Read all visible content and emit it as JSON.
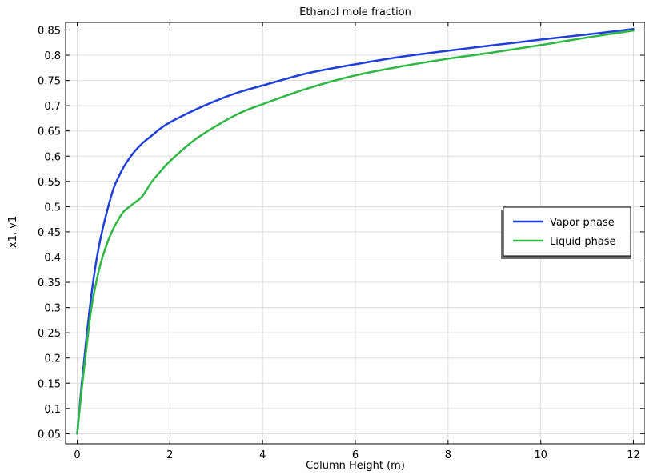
{
  "chart_data": {
    "type": "line",
    "title": "Ethanol mole fraction",
    "xlabel": "Column Height (m)",
    "ylabel": "x1, y1",
    "xlim": [
      -0.25,
      12.25
    ],
    "ylim": [
      0.03,
      0.865
    ],
    "xticks": [
      0,
      2,
      4,
      6,
      8,
      10,
      12
    ],
    "yticks": [
      0.05,
      0.1,
      0.15,
      0.2,
      0.25,
      0.3,
      0.35,
      0.4,
      0.45,
      0.5,
      0.55,
      0.6,
      0.65,
      0.7,
      0.75,
      0.8,
      0.85
    ],
    "ytick_labels": [
      "0.05",
      "0.1",
      "0.15",
      "0.2",
      "0.25",
      "0.3",
      "0.35",
      "0.4",
      "0.45",
      "0.5",
      "0.55",
      "0.6",
      "0.65",
      "0.7",
      "0.75",
      "0.8",
      "0.85"
    ],
    "grid": true,
    "legend_position": "right",
    "series": [
      {
        "name": "Vapor phase",
        "color": "#1f3fdc",
        "x": [
          0,
          0.1,
          0.2,
          0.3,
          0.4,
          0.5,
          0.6,
          0.7,
          0.8,
          0.9,
          1.0,
          1.2,
          1.4,
          1.6,
          1.8,
          2.0,
          2.5,
          3.0,
          3.5,
          4.0,
          5.0,
          6.0,
          7.0,
          8.0,
          9.0,
          10.0,
          11.0,
          12.0
        ],
        "y": [
          0.05,
          0.15,
          0.24,
          0.32,
          0.385,
          0.435,
          0.475,
          0.51,
          0.54,
          0.56,
          0.578,
          0.605,
          0.625,
          0.64,
          0.655,
          0.667,
          0.69,
          0.71,
          0.727,
          0.74,
          0.765,
          0.782,
          0.797,
          0.809,
          0.82,
          0.831,
          0.841,
          0.852
        ]
      },
      {
        "name": "Liquid phase",
        "color": "#2fb744",
        "x": [
          0,
          0.1,
          0.2,
          0.3,
          0.4,
          0.5,
          0.6,
          0.7,
          0.8,
          0.9,
          1.0,
          1.2,
          1.4,
          1.6,
          1.8,
          2.0,
          2.5,
          3.0,
          3.5,
          4.0,
          5.0,
          6.0,
          7.0,
          8.0,
          9.0,
          10.0,
          11.0,
          12.0
        ],
        "y": [
          0.05,
          0.14,
          0.22,
          0.295,
          0.345,
          0.385,
          0.415,
          0.44,
          0.46,
          0.476,
          0.49,
          0.505,
          0.52,
          0.548,
          0.57,
          0.59,
          0.63,
          0.66,
          0.685,
          0.703,
          0.735,
          0.76,
          0.778,
          0.793,
          0.806,
          0.82,
          0.835,
          0.849
        ]
      }
    ]
  }
}
